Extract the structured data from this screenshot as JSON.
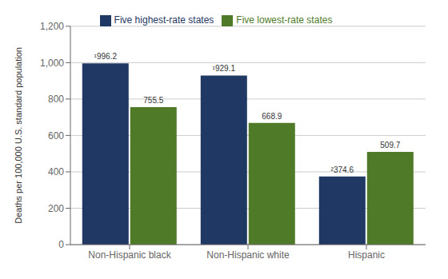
{
  "chart_data": {
    "type": "bar",
    "categories": [
      "Non-Hispanic black",
      "Non-Hispanic white",
      "Hispanic"
    ],
    "series": [
      {
        "name": "Five highest-rate states",
        "color": "#1f3864",
        "values": [
          996.2,
          929.1,
          374.6
        ],
        "value_labels": [
          "¹996.2",
          "¹929.1",
          "²374.6"
        ]
      },
      {
        "name": "Five lowest-rate states",
        "color": "#4f7a28",
        "values": [
          755.5,
          668.9,
          509.7
        ]
      }
    ],
    "ylabel": "Deaths per 100,000 U.S. standard population",
    "ylim": [
      0,
      1200
    ],
    "yticks": [
      0,
      200,
      400,
      600,
      {
        "value": 800,
        "label": "800"
      },
      {
        "value": 1000,
        "label": "1,000"
      },
      {
        "value": 1200,
        "label": "1,200"
      }
    ],
    "grid": true,
    "legend": "top",
    "data_labels": true
  }
}
